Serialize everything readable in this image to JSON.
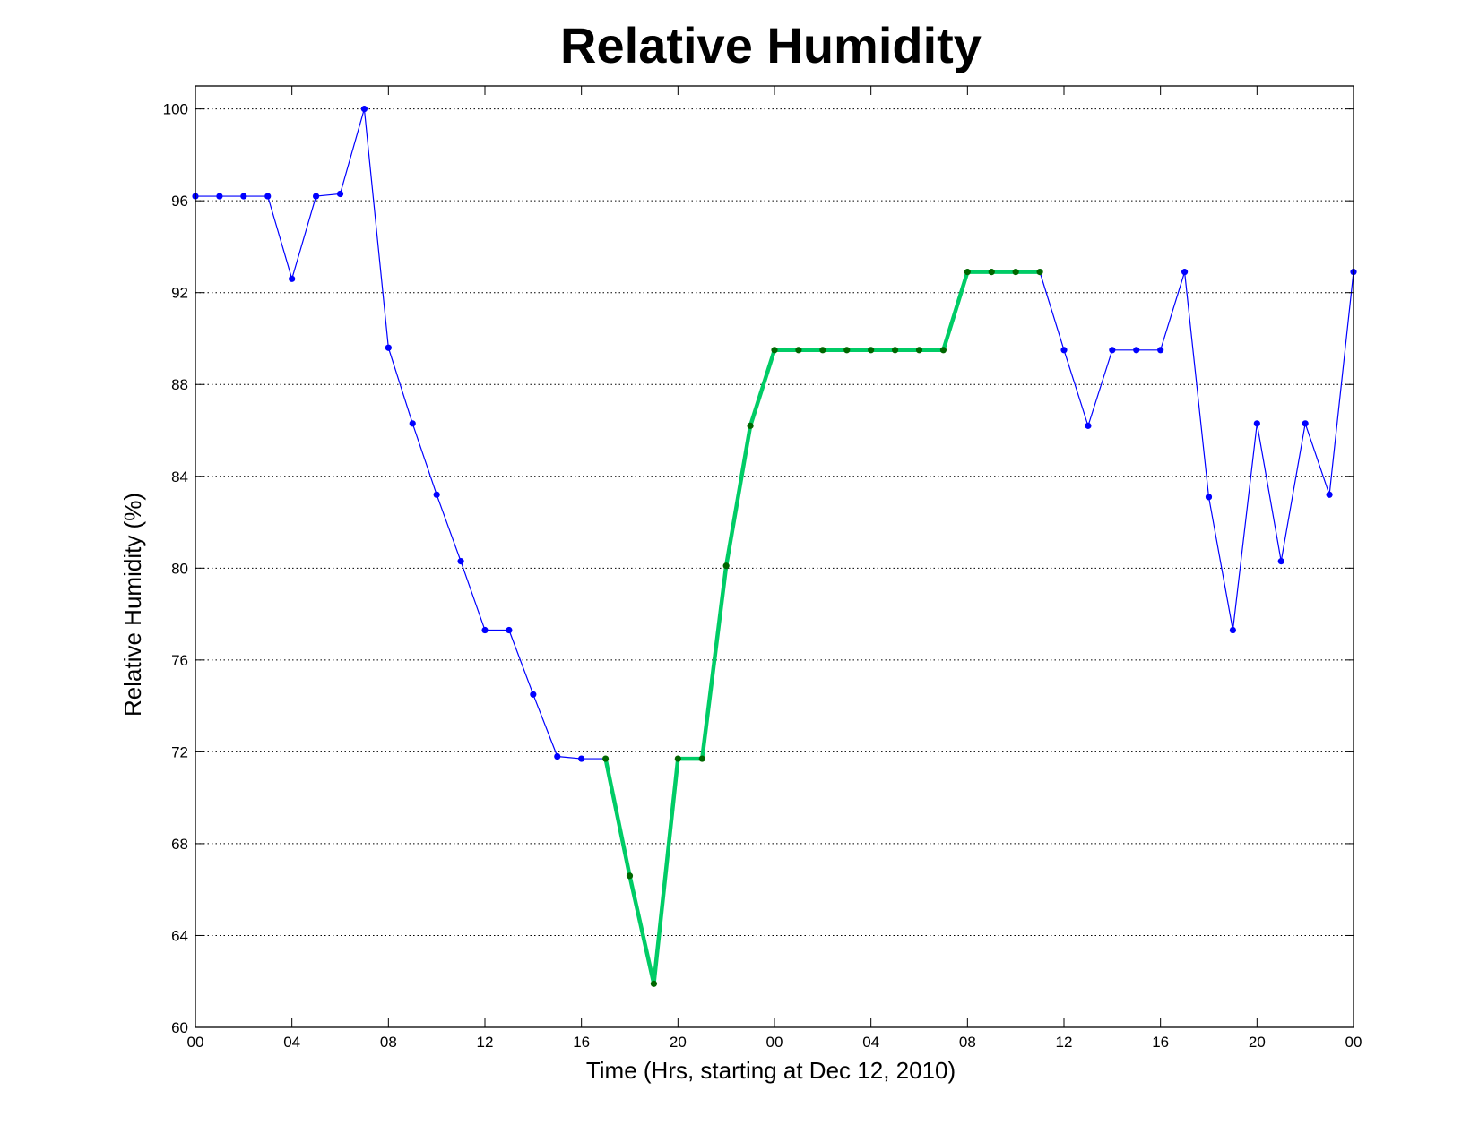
{
  "colors": {
    "background": "#ffffff",
    "main_series": "#0000ff",
    "highlight_series": "#00cc66",
    "highlight_marker": "#006600",
    "axes": "#000000",
    "grid": "#000000"
  },
  "chart_data": {
    "type": "line",
    "title": "Relative Humidity",
    "xlabel": "Time (Hrs, starting at Dec 12, 2010)",
    "ylabel": "Relative Humidity (%)",
    "xlim": [
      0,
      48
    ],
    "ylim": [
      60,
      101
    ],
    "grid": "horizontal dotted",
    "x_ticks": [
      0,
      4,
      8,
      12,
      16,
      20,
      24,
      28,
      32,
      36,
      40,
      44,
      48
    ],
    "x_tick_labels": [
      "00",
      "04",
      "08",
      "12",
      "16",
      "20",
      "00",
      "04",
      "08",
      "12",
      "16",
      "20",
      "00"
    ],
    "y_ticks": [
      60,
      64,
      68,
      72,
      76,
      80,
      84,
      88,
      92,
      96,
      100
    ],
    "y_tick_labels": [
      "60",
      "64",
      "68",
      "72",
      "76",
      "80",
      "84",
      "88",
      "92",
      "96",
      "100"
    ],
    "series": [
      {
        "style": "thin line with markers",
        "x": [
          0,
          1,
          2,
          3,
          4,
          5,
          6,
          7,
          8,
          9,
          10,
          11,
          12,
          13,
          14,
          15,
          16,
          17,
          18,
          19,
          20,
          21,
          22,
          23,
          24,
          25,
          26,
          27,
          28,
          29,
          30,
          31,
          32,
          33,
          34,
          35,
          36,
          37,
          38,
          39,
          40,
          41,
          42,
          43,
          44,
          45,
          46,
          47,
          48
        ],
        "y": [
          96.2,
          96.2,
          96.2,
          96.2,
          92.6,
          96.2,
          96.3,
          100,
          89.6,
          86.3,
          83.2,
          80.3,
          77.3,
          77.3,
          74.5,
          71.8,
          71.7,
          71.7,
          66.6,
          61.9,
          71.7,
          71.7,
          80.1,
          86.2,
          89.5,
          89.5,
          89.5,
          89.5,
          89.5,
          89.5,
          89.5,
          89.5,
          92.9,
          92.9,
          92.9,
          92.9,
          89.5,
          86.2,
          89.5,
          89.5,
          89.5,
          92.9,
          83.1,
          77.3,
          86.3,
          80.3,
          86.3,
          83.2,
          92.9
        ]
      },
      {
        "style": "highlighted thick segment",
        "x": [
          17,
          18,
          19,
          20,
          21,
          22,
          23,
          24,
          25,
          26,
          27,
          28,
          29,
          30,
          31,
          32,
          33,
          34,
          35
        ],
        "y": [
          71.7,
          66.6,
          61.9,
          71.7,
          71.7,
          80.1,
          86.2,
          89.5,
          89.5,
          89.5,
          89.5,
          89.5,
          89.5,
          89.5,
          89.5,
          92.9,
          92.9,
          92.9,
          92.9
        ]
      }
    ]
  }
}
